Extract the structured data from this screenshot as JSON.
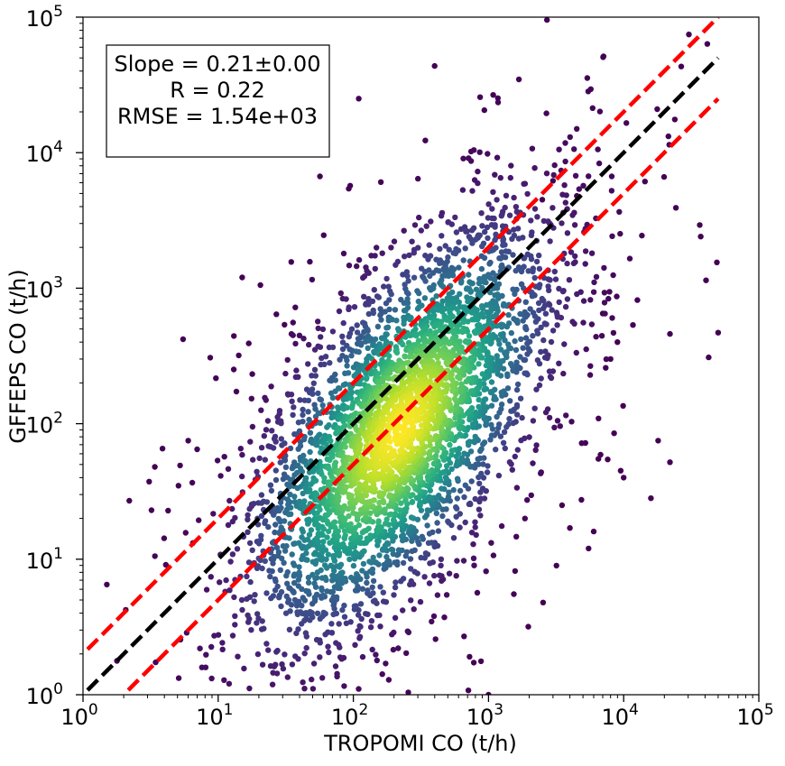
{
  "chart_data": {
    "type": "scatter",
    "title": "",
    "xlabel": "TROPOMI CO (t/h)",
    "ylabel": "GFFEPS CO (t/h)",
    "xscale": "log",
    "yscale": "log",
    "xlim": [
      1,
      100000
    ],
    "ylim": [
      1,
      100000
    ],
    "x_ticks": [
      {
        "value": 1,
        "base": "10",
        "exp": "0"
      },
      {
        "value": 10,
        "base": "10",
        "exp": "1"
      },
      {
        "value": 100,
        "base": "10",
        "exp": "2"
      },
      {
        "value": 1000,
        "base": "10",
        "exp": "3"
      },
      {
        "value": 10000,
        "base": "10",
        "exp": "4"
      },
      {
        "value": 100000,
        "base": "10",
        "exp": "5"
      }
    ],
    "y_ticks": [
      {
        "value": 1,
        "base": "10",
        "exp": "0"
      },
      {
        "value": 10,
        "base": "10",
        "exp": "1"
      },
      {
        "value": 100,
        "base": "10",
        "exp": "2"
      },
      {
        "value": 1000,
        "base": "10",
        "exp": "3"
      },
      {
        "value": 10000,
        "base": "10",
        "exp": "4"
      },
      {
        "value": 100000,
        "base": "10",
        "exp": "5"
      }
    ],
    "grid": false,
    "colormap": "viridis",
    "point_color_encoding": "point density",
    "stats_box": {
      "placement": "top-left",
      "lines": [
        "Slope = 0.21±0.00",
        "R = 0.22",
        "RMSE = 1.54e+03"
      ]
    },
    "reference_lines": [
      {
        "style": "dashed",
        "color": "#000000",
        "x": [
          1.08,
          50000
        ],
        "y": [
          1.08,
          50000
        ]
      },
      {
        "style": "dashed",
        "color": "#ff0000",
        "x": [
          1.08,
          50000
        ],
        "y": [
          2.16,
          100000
        ]
      },
      {
        "style": "dashed",
        "color": "#ff0000",
        "x": [
          2.16,
          50000
        ],
        "y": [
          1.08,
          25000
        ]
      }
    ],
    "cluster": {
      "center_x": 220,
      "center_y": 90,
      "n_points": 4200,
      "x_range": [
        1.5,
        50000
      ],
      "y_range": [
        1,
        100000
      ]
    },
    "outlier_points": [
      {
        "x": 5.5,
        "y": 420
      },
      {
        "x": 50000,
        "y": 470
      },
      {
        "x": 22000,
        "y": 460
      },
      {
        "x": 22000,
        "y": 52
      },
      {
        "x": 18000,
        "y": 75
      },
      {
        "x": 2.2,
        "y": 27
      },
      {
        "x": 1.5,
        "y": 6.5
      },
      {
        "x": 3.4,
        "y": 48
      },
      {
        "x": 6,
        "y": 75
      },
      {
        "x": 8000,
        "y": 300
      },
      {
        "x": 9000,
        "y": 400
      },
      {
        "x": 7000,
        "y": 650
      },
      {
        "x": 4500,
        "y": 4800
      },
      {
        "x": 3000,
        "y": 6200
      },
      {
        "x": 2500,
        "y": 4500
      },
      {
        "x": 6000,
        "y": 16
      },
      {
        "x": 5500,
        "y": 12
      },
      {
        "x": 9500,
        "y": 45
      },
      {
        "x": 10000,
        "y": 40
      },
      {
        "x": 8500,
        "y": 85
      },
      {
        "x": 6500,
        "y": 55
      },
      {
        "x": 4000,
        "y": 17
      },
      {
        "x": 3500,
        "y": 25
      },
      {
        "x": 1000,
        "y": 1
      }
    ]
  }
}
